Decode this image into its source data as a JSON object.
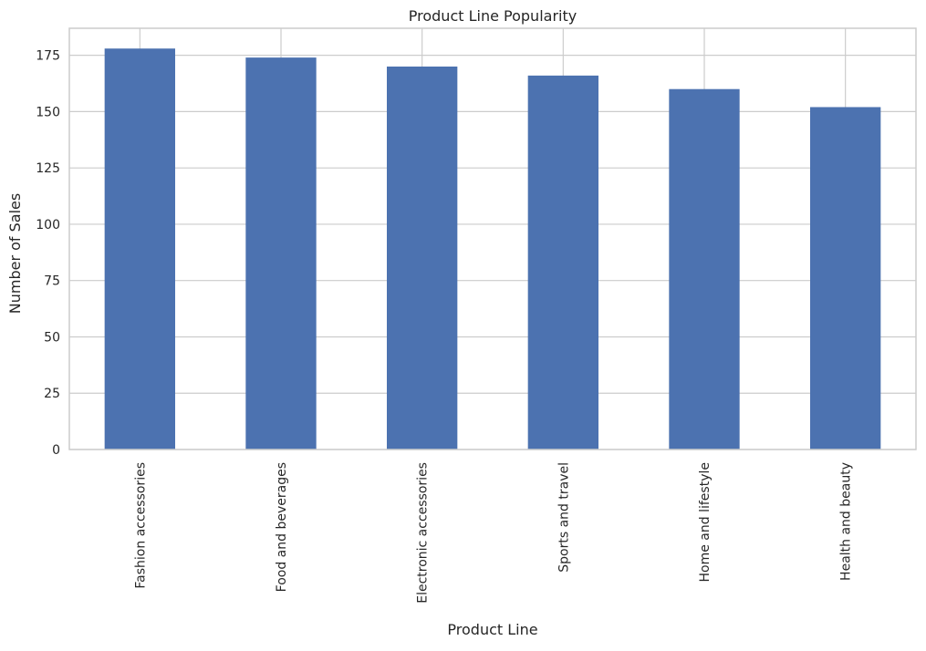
{
  "chart_data": {
    "type": "bar",
    "title": "Product Line Popularity",
    "xlabel": "Product Line",
    "ylabel": "Number of Sales",
    "categories": [
      "Fashion accessories",
      "Food and beverages",
      "Electronic accessories",
      "Sports and travel",
      "Home and lifestyle",
      "Health and beauty"
    ],
    "values": [
      178,
      174,
      170,
      166,
      160,
      152
    ],
    "ylim": [
      0,
      187
    ],
    "yticks": [
      0,
      25,
      50,
      75,
      100,
      125,
      150,
      175
    ],
    "grid": true,
    "legend": "none",
    "colors": {
      "bar": "#4c72b0",
      "grid": "#cccccc",
      "spine": "#cccccc",
      "text": "#262626",
      "background": "#ffffff"
    }
  }
}
